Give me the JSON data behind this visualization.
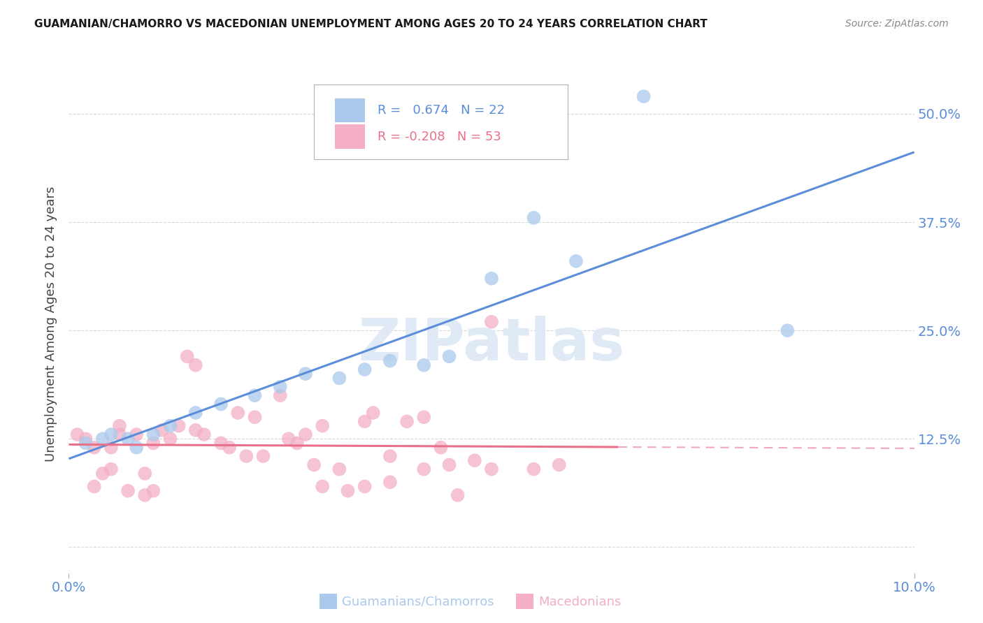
{
  "title": "GUAMANIAN/CHAMORRO VS MACEDONIAN UNEMPLOYMENT AMONG AGES 20 TO 24 YEARS CORRELATION CHART",
  "source": "Source: ZipAtlas.com",
  "xlabel_blue": "Guamanians/Chamorros",
  "xlabel_pink": "Macedonians",
  "ylabel": "Unemployment Among Ages 20 to 24 years",
  "xmin": 0.0,
  "xmax": 0.1,
  "ymin": -0.03,
  "ymax": 0.545,
  "yticks": [
    0.0,
    0.125,
    0.25,
    0.375,
    0.5
  ],
  "ytick_labels": [
    "",
    "12.5%",
    "25.0%",
    "37.5%",
    "50.0%"
  ],
  "xticks": [
    0.0,
    0.1
  ],
  "xtick_labels": [
    "0.0%",
    "10.0%"
  ],
  "legend_blue_r": "0.674",
  "legend_blue_n": "22",
  "legend_pink_r": "-0.208",
  "legend_pink_n": "53",
  "blue_color": "#aac9ed",
  "pink_color": "#f4afc4",
  "blue_line_color": "#5b8dd9",
  "pink_line_color": "#e8708a",
  "watermark_color": "#dce8f5",
  "blue_scatter_x": [
    0.002,
    0.004,
    0.005,
    0.007,
    0.008,
    0.01,
    0.012,
    0.015,
    0.018,
    0.022,
    0.025,
    0.028,
    0.032,
    0.035,
    0.038,
    0.042,
    0.045,
    0.05,
    0.055,
    0.06,
    0.068,
    0.085
  ],
  "blue_scatter_y": [
    0.12,
    0.125,
    0.13,
    0.125,
    0.115,
    0.13,
    0.14,
    0.155,
    0.165,
    0.175,
    0.185,
    0.2,
    0.195,
    0.205,
    0.215,
    0.21,
    0.22,
    0.31,
    0.38,
    0.33,
    0.52,
    0.25
  ],
  "pink_scatter_x": [
    0.001,
    0.002,
    0.003,
    0.003,
    0.004,
    0.005,
    0.005,
    0.006,
    0.006,
    0.007,
    0.008,
    0.009,
    0.009,
    0.01,
    0.01,
    0.011,
    0.012,
    0.013,
    0.014,
    0.015,
    0.015,
    0.016,
    0.018,
    0.019,
    0.02,
    0.021,
    0.022,
    0.023,
    0.025,
    0.026,
    0.027,
    0.028,
    0.029,
    0.03,
    0.032,
    0.033,
    0.035,
    0.036,
    0.038,
    0.04,
    0.042,
    0.044,
    0.046,
    0.048,
    0.05,
    0.05,
    0.055,
    0.058,
    0.042,
    0.045,
    0.038,
    0.035,
    0.03
  ],
  "pink_scatter_y": [
    0.13,
    0.125,
    0.115,
    0.07,
    0.085,
    0.09,
    0.115,
    0.13,
    0.14,
    0.065,
    0.13,
    0.085,
    0.06,
    0.12,
    0.065,
    0.135,
    0.125,
    0.14,
    0.22,
    0.21,
    0.135,
    0.13,
    0.12,
    0.115,
    0.155,
    0.105,
    0.15,
    0.105,
    0.175,
    0.125,
    0.12,
    0.13,
    0.095,
    0.14,
    0.09,
    0.065,
    0.145,
    0.155,
    0.105,
    0.145,
    0.15,
    0.115,
    0.06,
    0.1,
    0.09,
    0.26,
    0.09,
    0.095,
    0.09,
    0.095,
    0.075,
    0.07,
    0.07
  ],
  "background_color": "#ffffff",
  "grid_color": "#c8c8c8"
}
